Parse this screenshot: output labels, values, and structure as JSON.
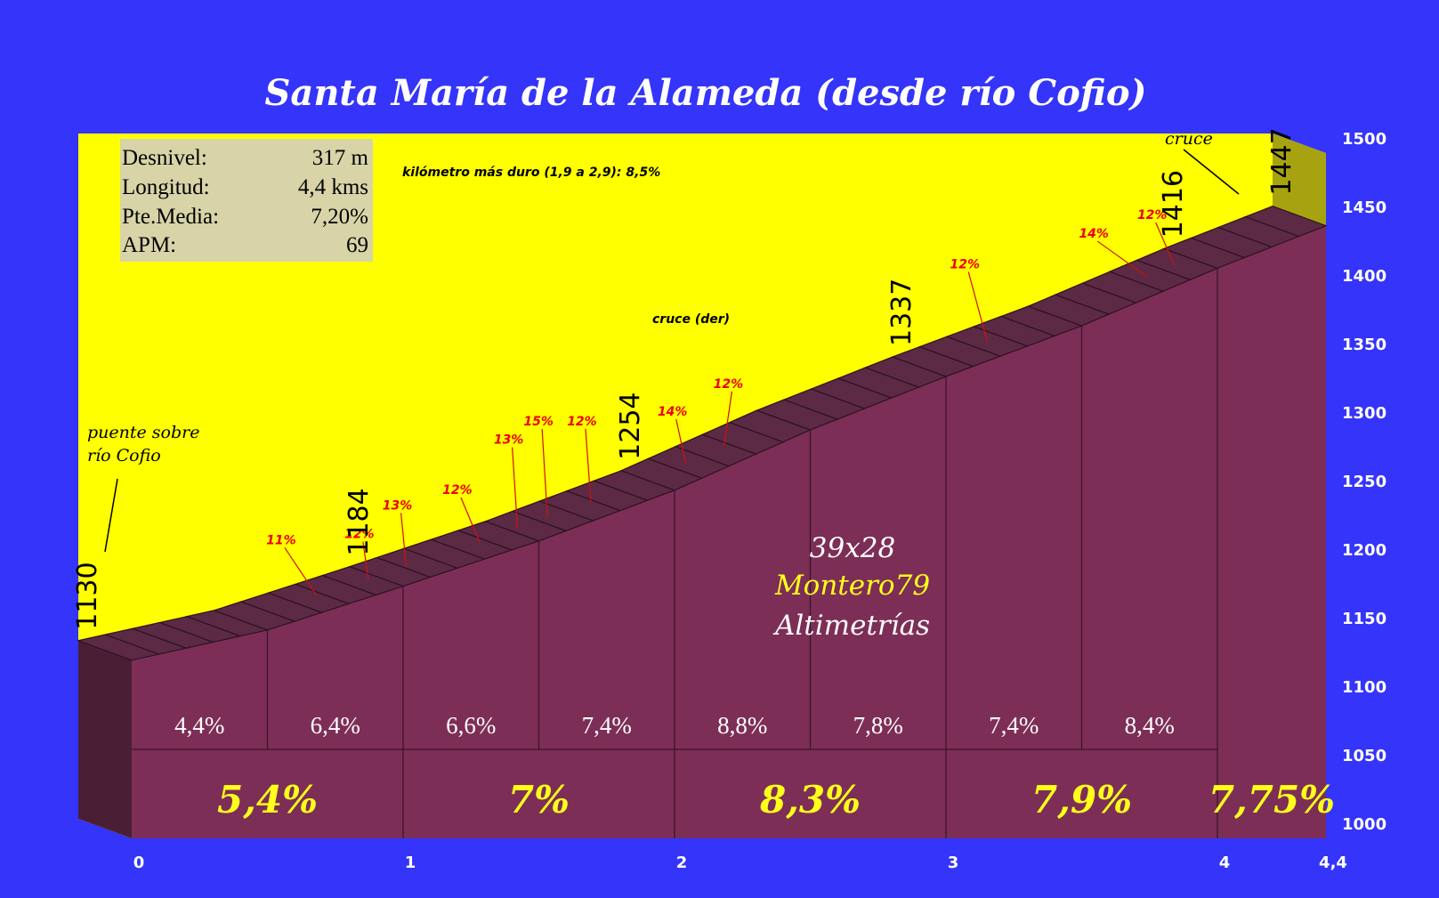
{
  "chart_data": {
    "type": "area",
    "title": "Santa María de la Alameda (desde río Cofio)",
    "xlim": [
      0,
      4.4
    ],
    "ylim": [
      1000,
      1500
    ],
    "x_ticks": [
      "0",
      "1",
      "2",
      "3",
      "4",
      "4,4"
    ],
    "y_ticks": [
      "1000",
      "1050",
      "1100",
      "1150",
      "1200",
      "1250",
      "1300",
      "1350",
      "1400",
      "1450",
      "1500"
    ],
    "profile": [
      {
        "x": 0,
        "y": 1130
      },
      {
        "x": 0.5,
        "y": 1152
      },
      {
        "x": 1,
        "y": 1184
      },
      {
        "x": 1.5,
        "y": 1217
      },
      {
        "x": 2,
        "y": 1254
      },
      {
        "x": 2.5,
        "y": 1298
      },
      {
        "x": 3,
        "y": 1337
      },
      {
        "x": 3.5,
        "y": 1374
      },
      {
        "x": 4,
        "y": 1416
      },
      {
        "x": 4.4,
        "y": 1447
      }
    ],
    "segments_500m": [
      {
        "from": 0,
        "to": 0.5,
        "label": "4,4%"
      },
      {
        "from": 0.5,
        "to": 1,
        "label": "6,4%"
      },
      {
        "from": 1,
        "to": 1.5,
        "label": "6,6%"
      },
      {
        "from": 1.5,
        "to": 2,
        "label": "7,4%"
      },
      {
        "from": 2,
        "to": 2.5,
        "label": "8,8%"
      },
      {
        "from": 2.5,
        "to": 3,
        "label": "7,8%"
      },
      {
        "from": 3,
        "to": 3.5,
        "label": "7,4%"
      },
      {
        "from": 3.5,
        "to": 4,
        "label": "8,4%"
      }
    ],
    "segments_km": [
      {
        "from": 0,
        "to": 1,
        "label": "5,4%"
      },
      {
        "from": 1,
        "to": 2,
        "label": "7%"
      },
      {
        "from": 2,
        "to": 3,
        "label": "8,3%"
      },
      {
        "from": 3,
        "to": 4,
        "label": "7,9%"
      },
      {
        "from": 4,
        "to": 4.4,
        "label": "7,75%"
      }
    ],
    "elevation_labels": [
      {
        "x": 0,
        "text": "1130"
      },
      {
        "x": 1,
        "text": "1184"
      },
      {
        "x": 2,
        "text": "1254"
      },
      {
        "x": 3,
        "text": "1337"
      },
      {
        "x": 4,
        "text": "1416"
      },
      {
        "x": 4.4,
        "text": "1447"
      }
    ],
    "gradient_marks": [
      {
        "x": 0.78,
        "text": "11%"
      },
      {
        "x": 0.97,
        "text": "12%"
      },
      {
        "x": 1.11,
        "text": "13%"
      },
      {
        "x": 1.38,
        "text": "12%"
      },
      {
        "x": 1.52,
        "text": "13%"
      },
      {
        "x": 1.63,
        "text": "15%"
      },
      {
        "x": 1.79,
        "text": "12%"
      },
      {
        "x": 2.14,
        "text": "14%"
      },
      {
        "x": 2.28,
        "text": "12%"
      },
      {
        "x": 3.25,
        "text": "12%"
      },
      {
        "x": 3.84,
        "text": "14%"
      },
      {
        "x": 3.94,
        "text": "12%"
      }
    ]
  },
  "stats": [
    {
      "label": "Desnivel:",
      "value": "317 m"
    },
    {
      "label": "Longitud:",
      "value": "4,4 kms"
    },
    {
      "label": "Pte.Media:",
      "value": "7,20%"
    },
    {
      "label": "APM:",
      "value": "69"
    }
  ],
  "notes": {
    "hardest_km": "kilómetro más duro (1,9 a 2,9):  8,5%",
    "cruce_der": "cruce (der)",
    "cruce_top": "cruce",
    "start_line1": "puente sobre",
    "start_line2": "río Cofio"
  },
  "credits": {
    "gear": "39x28",
    "author": "Montero79",
    "site": "Altimetrías"
  },
  "colors": {
    "background": "#3434fa",
    "sky": "#ffff00",
    "profile_front": "#7d2e57",
    "profile_top": "#5c2a44",
    "gradient_text": "#ee0000",
    "km_text": "#ffff1a"
  }
}
